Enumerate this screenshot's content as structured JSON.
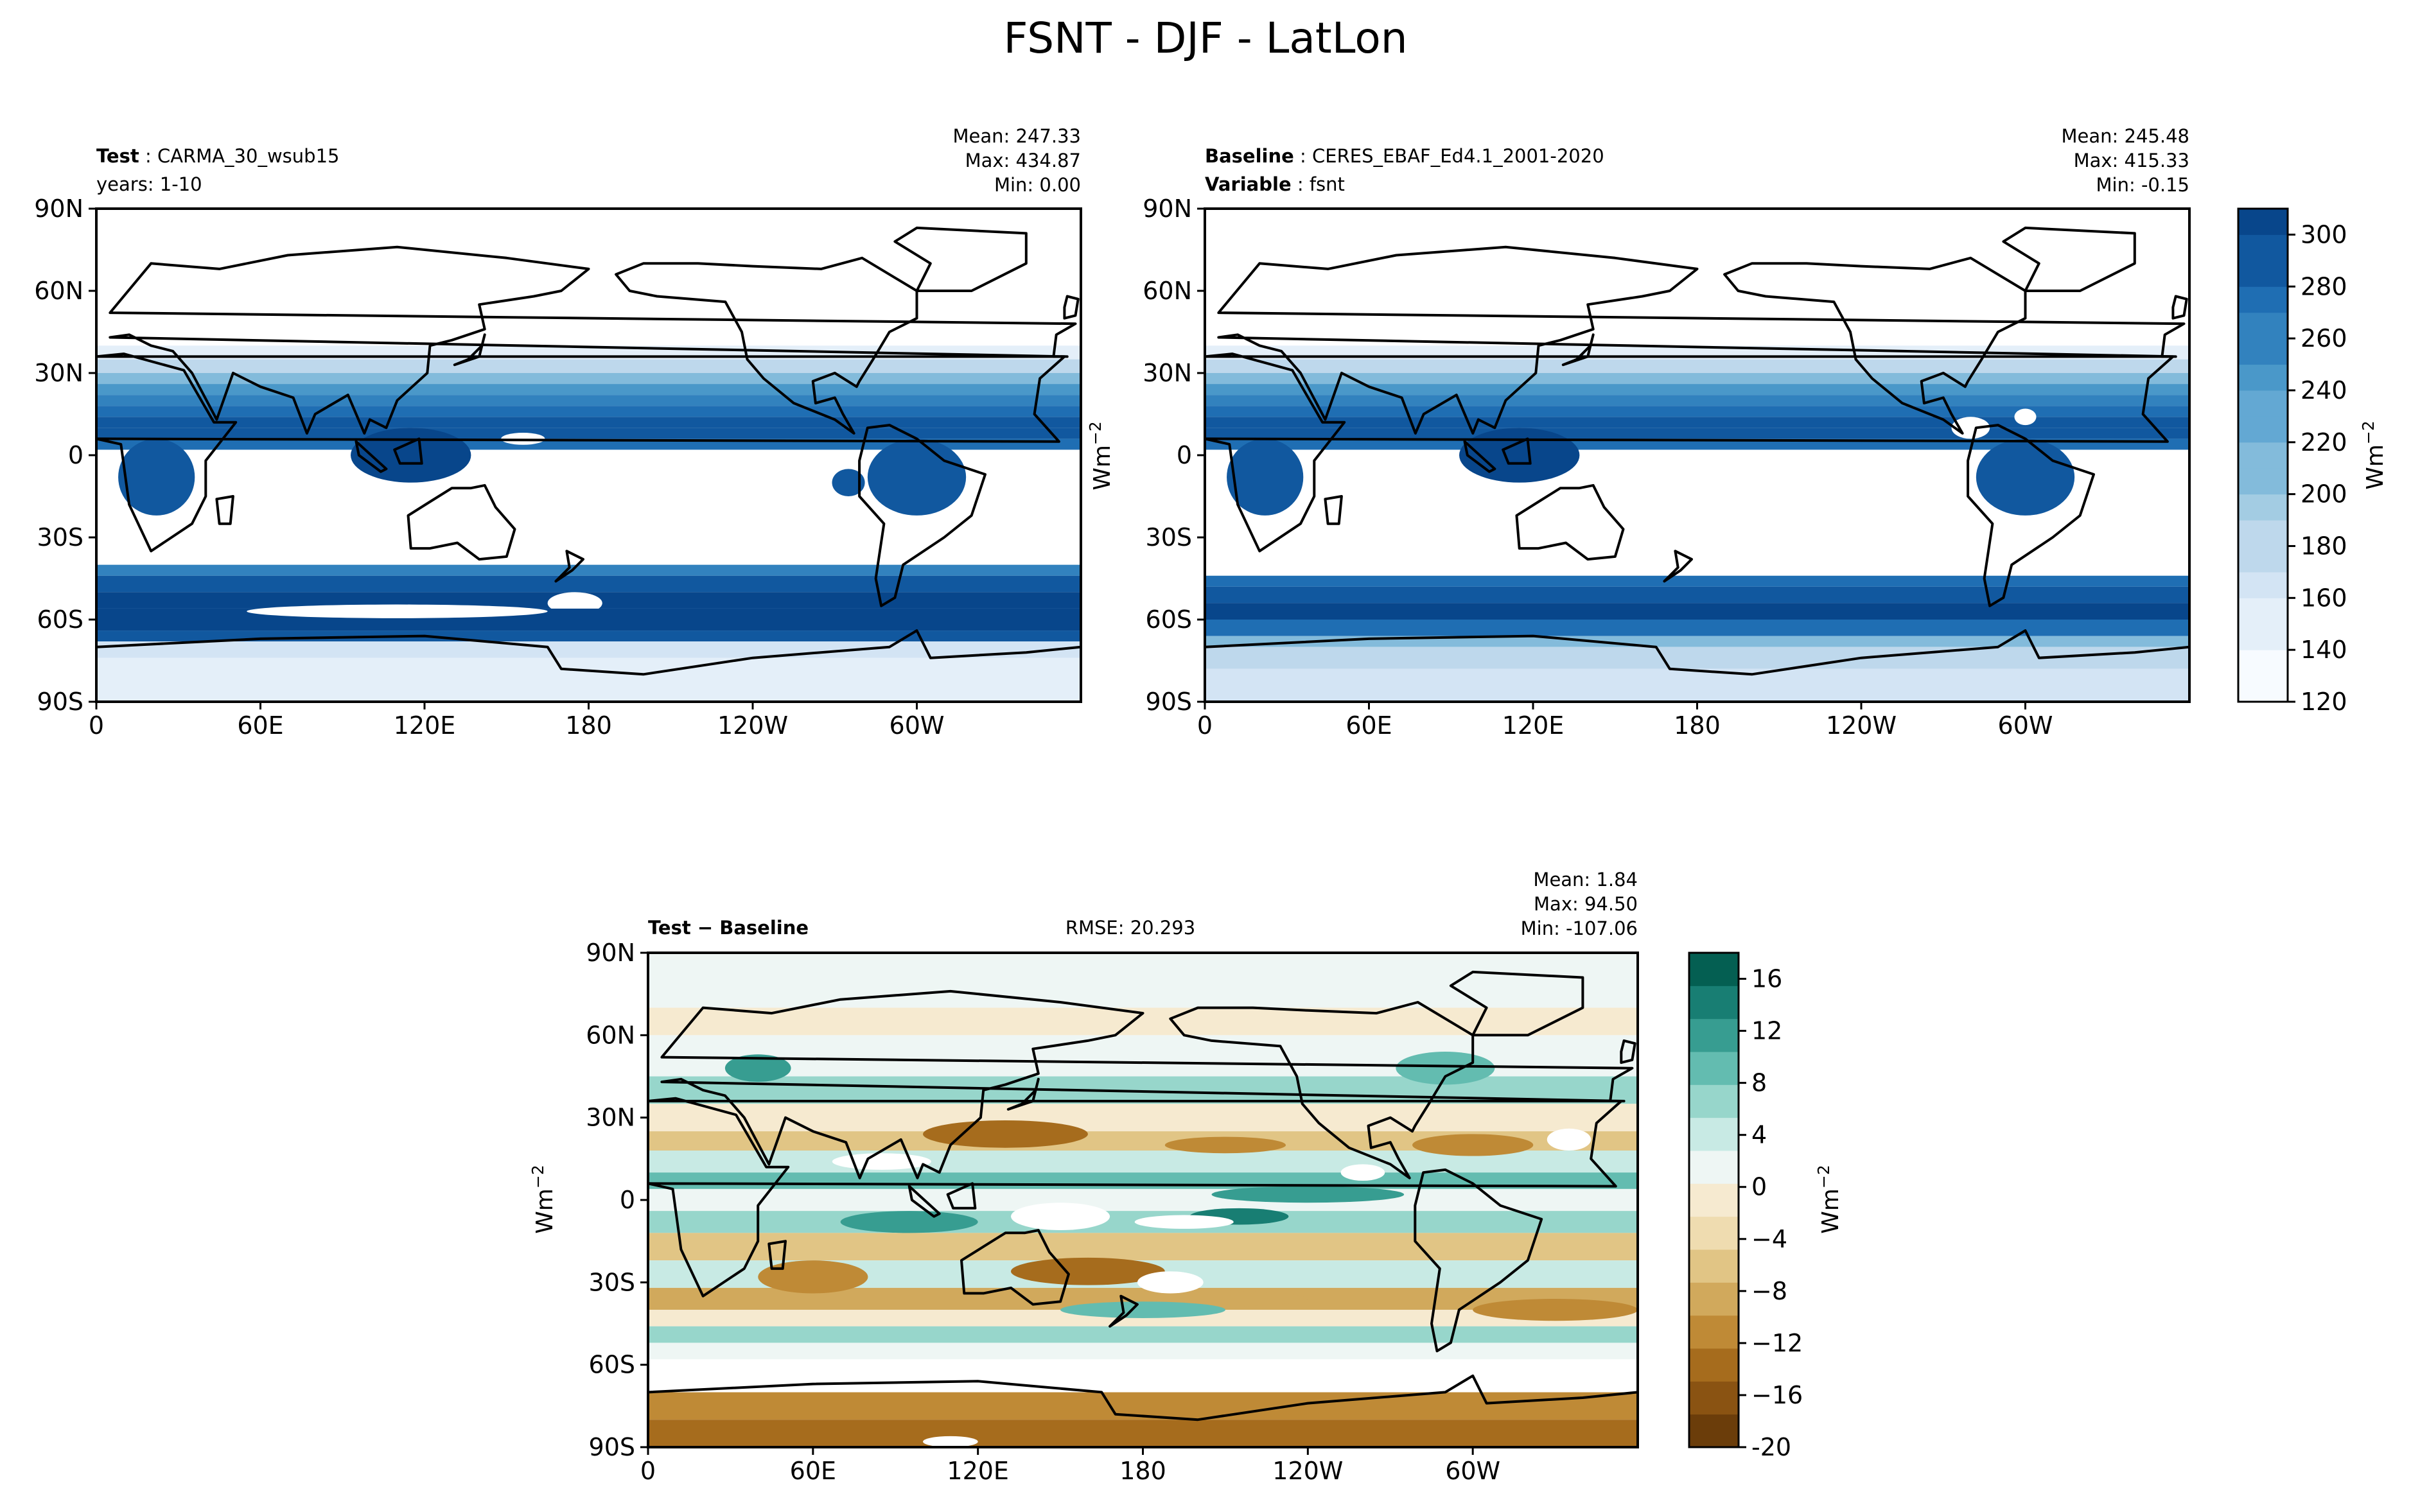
{
  "title": "FSNT - DJF - LatLon",
  "colors": {
    "blues": [
      "#f7fbff",
      "#e4eff9",
      "#d3e4f4",
      "#bed8ec",
      "#a3cce3",
      "#83bbdb",
      "#63a8d3",
      "#4a98c9",
      "#3282be",
      "#1f6eb3",
      "#11589f",
      "#08468b"
    ],
    "brbg": [
      "#6b3d0a",
      "#8a5312",
      "#a66c1d",
      "#bf8a36",
      "#d1a95c",
      "#e1c585",
      "#efdcb0",
      "#f6ead0",
      "#eef6f4",
      "#c8eae4",
      "#97d6cb",
      "#63bcb0",
      "#379d91",
      "#187e73",
      "#045f52"
    ],
    "land": "#000000"
  },
  "panels": {
    "test": {
      "name_key": "Test",
      "name_value": "CARMA_30_wsub15",
      "line2_value": "years: 1-10",
      "mean": "Mean: 247.33",
      "max": "Max: 434.87",
      "min": "Min:  0.00"
    },
    "baseline": {
      "name_key": "Baseline",
      "name_value": "CERES_EBAF_Ed4.1_2001-2020",
      "line2_key": "Variable",
      "line2_value": "fsnt",
      "mean": "Mean: 245.48",
      "max": "Max: 415.33",
      "min": "Min: -0.15"
    },
    "diff": {
      "name": "Test − Baseline",
      "rmse": "RMSE: 20.293",
      "mean": "Mean:  1.84",
      "max": "Max: 94.50",
      "min": "Min: -107.06"
    }
  },
  "units": "Wm",
  "units_exp": "−2",
  "chart_data": [
    {
      "type": "heatmap",
      "id": "test",
      "title": "Test: CARMA_30_wsub15",
      "x_ticks": [
        "0",
        "60E",
        "120E",
        "180",
        "120W",
        "60W"
      ],
      "y_ticks": [
        "90N",
        "60N",
        "30N",
        "0",
        "30S",
        "60S",
        "90S"
      ],
      "lon_range": [
        0,
        360
      ],
      "lat_range": [
        -90,
        90
      ],
      "colorbar": "shared_blues",
      "stats": {
        "mean": 247.33,
        "max": 434.87,
        "min": 0.0
      }
    },
    {
      "type": "heatmap",
      "id": "baseline",
      "title": "Baseline: CERES_EBAF_Ed4.1_2001-2020",
      "x_ticks": [
        "0",
        "60E",
        "120E",
        "180",
        "120W",
        "60W"
      ],
      "y_ticks": [
        "90N",
        "60N",
        "30N",
        "0",
        "30S",
        "60S",
        "90S"
      ],
      "lon_range": [
        0,
        360
      ],
      "lat_range": [
        -90,
        90
      ],
      "colorbar": "shared_blues",
      "stats": {
        "mean": 245.48,
        "max": 415.33,
        "min": -0.15
      }
    },
    {
      "type": "heatmap",
      "id": "difference",
      "title": "Test − Baseline",
      "x_ticks": [
        "0",
        "60E",
        "120E",
        "180",
        "120W",
        "60W"
      ],
      "y_ticks": [
        "90N",
        "60N",
        "30N",
        "0",
        "30S",
        "60S",
        "90S"
      ],
      "lon_range": [
        0,
        360
      ],
      "lat_range": [
        -90,
        90
      ],
      "colorbar": "brbg",
      "stats": {
        "mean": 1.84,
        "max": 94.5,
        "min": -107.06,
        "rmse": 20.293
      }
    }
  ],
  "colorbars": {
    "blues": {
      "range": [
        120,
        310
      ],
      "ticks": [
        "120",
        "140",
        "160",
        "180",
        "200",
        "220",
        "240",
        "260",
        "280",
        "300"
      ]
    },
    "brbg": {
      "range": [
        -20,
        18
      ],
      "ticks": [
        "-20",
        "−16",
        "−12",
        "−8",
        "−4",
        "0",
        "4",
        "8",
        "12",
        "16"
      ]
    }
  }
}
